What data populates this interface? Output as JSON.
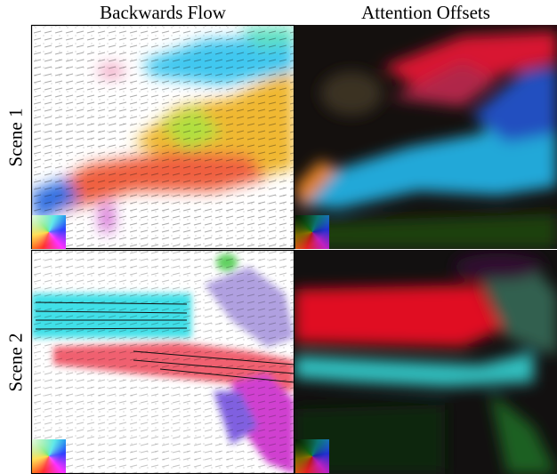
{
  "header": {
    "columns": [
      "Backwards Flow",
      "Attention Offsets"
    ]
  },
  "rows": [
    {
      "label": "Scene 1"
    },
    {
      "label": "Scene 2"
    }
  ]
}
